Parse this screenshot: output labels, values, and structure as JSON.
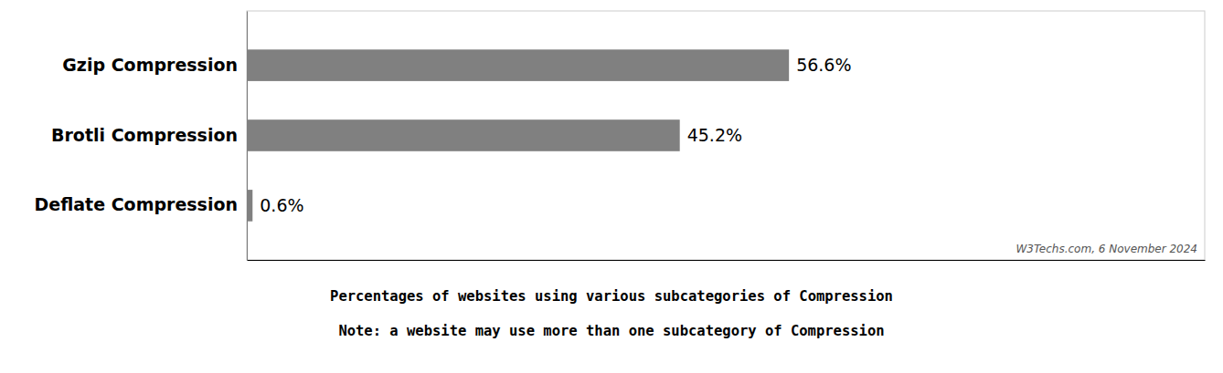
{
  "chart_data": {
    "type": "bar",
    "orientation": "horizontal",
    "categories": [
      "Gzip Compression",
      "Brotli Compression",
      "Deflate Compression"
    ],
    "values": [
      56.6,
      45.2,
      0.6
    ],
    "value_labels": [
      "56.6%",
      "45.2%",
      "0.6%"
    ],
    "data_labels": true,
    "color": "#808080",
    "xlim": [
      0,
      100
    ],
    "tick_labels": "y",
    "grid": false,
    "annotations": [
      "W3Techs.com, 6 November 2024",
      "Percentages of websites using various subcategories of Compression",
      "Note: a website may use more than one subcategory of Compression"
    ]
  }
}
